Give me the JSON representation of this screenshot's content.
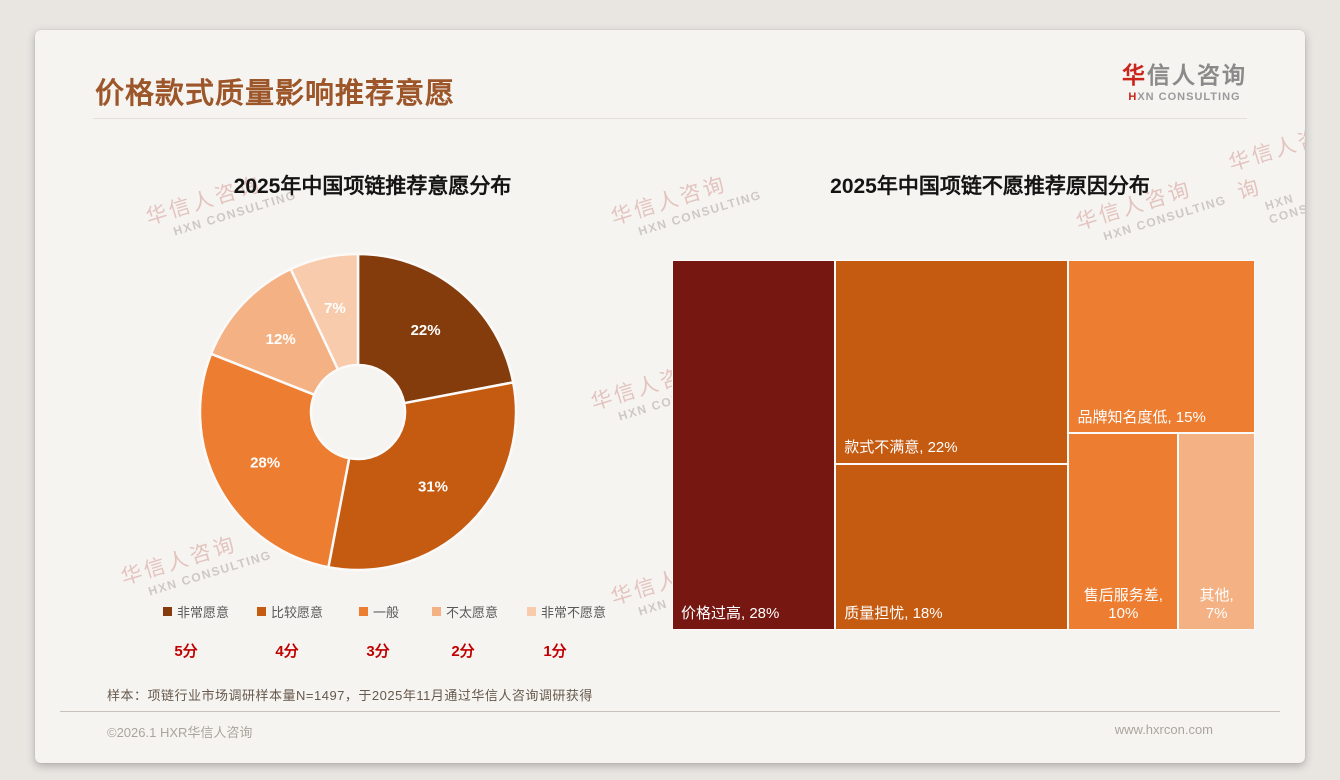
{
  "page": {
    "title": "价格款式质量影响推荐意愿",
    "logo": {
      "cjk_accent": "华",
      "cjk_rest": "信人咨询",
      "sub_accent": "H",
      "sub_rest": "XN CONSULTING"
    },
    "watermark": {
      "line1": "华信人咨询",
      "line2": "HXN CONSULTING"
    },
    "footnote": "样本：项链行业市场调研样本量N=1497，于2025年11月通过华信人咨询调研获得",
    "copyright": "©2026.1 HXR华信人咨询",
    "website": "www.hxrcon.com"
  },
  "colors": {
    "title": "#9C5629",
    "score_red": "#C00000",
    "card_bg": "#F6F4F1",
    "page_bg": "#E9E6E2"
  },
  "chart_data": [
    {
      "type": "pie",
      "subtype": "donut",
      "title": "2025年中国项链推荐意愿分布",
      "categories": [
        "非常愿意",
        "比较愿意",
        "一般",
        "不太愿意",
        "非常不愿意"
      ],
      "values": [
        22,
        31,
        28,
        12,
        7
      ],
      "labels": [
        "22%",
        "31%",
        "28%",
        "12%",
        "7%"
      ],
      "colors": [
        "#843C0C",
        "#C55A11",
        "#ED7D31",
        "#F4B183",
        "#F8CBAD"
      ],
      "scores": [
        "5分",
        "4分",
        "3分",
        "2分",
        "1分"
      ],
      "legend_position": "bottom",
      "start_angle": 0,
      "direction": "clockwise"
    },
    {
      "type": "treemap",
      "title": "2025年中国项链不愿推荐原因分布",
      "items": [
        {
          "name": "价格过高",
          "value": 28,
          "label": "价格过高, 28%",
          "color": "#771712"
        },
        {
          "name": "款式不满意",
          "value": 22,
          "label": "款式不满意, 22%",
          "color": "#C55A11"
        },
        {
          "name": "质量担忧",
          "value": 18,
          "label": "质量担忧, 18%",
          "color": "#C55A11"
        },
        {
          "name": "品牌知名度低",
          "value": 15,
          "label": "品牌知名度低, 15%",
          "color": "#ED7D31"
        },
        {
          "name": "售后服务差",
          "value": 10,
          "label": "售后服务差, 10%",
          "color": "#ED7D31"
        },
        {
          "name": "其他",
          "value": 7,
          "label": "其他, 7%",
          "color": "#F4B183"
        }
      ],
      "layout": {
        "columns": [
          [
            0
          ],
          [
            1,
            2
          ],
          [
            3,
            [
              4,
              5
            ]
          ]
        ]
      }
    }
  ]
}
